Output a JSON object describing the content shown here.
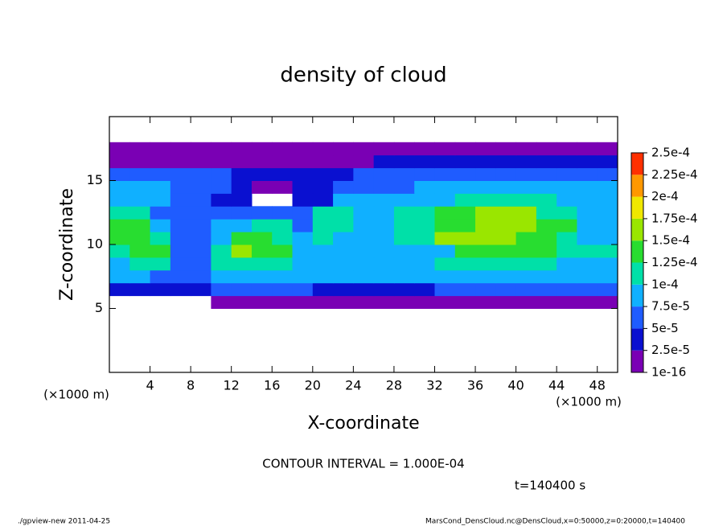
{
  "chart_data": {
    "type": "contour",
    "title": "density of cloud",
    "x_label": "X-coordinate",
    "y_label": "Z-coordinate",
    "x_unit": "(×1000 m)",
    "y_unit": "(×1000 m)",
    "contour_note": "CONTOUR INTERVAL = 1.000E-04",
    "time_note": "t=140400 s",
    "footer_left": "./gpview-new   2011-04-25",
    "footer_right": "MarsCond_DensCloud.nc@DensCloud,x=0:50000,z=0:20000,t=140400",
    "xlim": [
      0,
      50
    ],
    "ylim": [
      0,
      20
    ],
    "xticks": [
      4,
      8,
      12,
      16,
      20,
      24,
      28,
      32,
      36,
      40,
      44,
      48
    ],
    "yticks": [
      5,
      10,
      15
    ],
    "levels": [
      1e-16,
      {
        "value": 2.5e-05,
        "label": "2.5e-5"
      },
      {
        "value": 5e-05,
        "label": "5e-5"
      },
      {
        "value": 7.5e-05,
        "label": "7.5e-5"
      },
      {
        "value": 0.0001,
        "label": "1e-4"
      },
      {
        "value": 0.000125,
        "label": "1.25e-4"
      },
      {
        "value": 0.00015,
        "label": "1.5e-4"
      },
      {
        "value": 0.000175,
        "label": "1.75e-4"
      },
      {
        "value": 0.0002,
        "label": "2e-4"
      },
      {
        "value": 0.000225,
        "label": "2.25e-4"
      },
      {
        "value": 0.00025,
        "label": "2.5e-4"
      }
    ],
    "colors": [
      "#7a00b4",
      "#0a10d0",
      "#1f5cff",
      "#10b0ff",
      "#00e0a8",
      "#28dd30",
      "#9ae600",
      "#f0e800",
      "#ff9800",
      "#ff3000"
    ],
    "x": [
      1,
      3,
      5,
      7,
      9,
      11,
      13,
      15,
      17,
      19,
      21,
      23,
      25,
      27,
      29,
      31,
      33,
      35,
      37,
      39,
      41,
      43,
      45,
      47,
      49
    ],
    "y": [
      5.5,
      6.5,
      7.5,
      8.5,
      9.5,
      10.5,
      11.5,
      12.5,
      13.5,
      14.5,
      15.5,
      16.5,
      17.5
    ],
    "z": [
      [
        null,
        null,
        null,
        null,
        null,
        1e-05,
        1e-05,
        1e-05,
        1e-05,
        1e-05,
        1e-05,
        1e-05,
        1e-05,
        1e-05,
        1e-05,
        1e-05,
        1e-05,
        1e-05,
        1e-05,
        1e-05,
        1e-05,
        1e-05,
        1e-05,
        1e-05,
        1e-05
      ],
      [
        4e-05,
        4e-05,
        4e-05,
        4e-05,
        4e-05,
        6e-05,
        6e-05,
        6e-05,
        6e-05,
        6e-05,
        4e-05,
        4e-05,
        4e-05,
        4e-05,
        4e-05,
        4e-05,
        6e-05,
        6e-05,
        6e-05,
        6e-05,
        6e-05,
        6e-05,
        6e-05,
        6e-05,
        6e-05
      ],
      [
        9e-05,
        9e-05,
        6e-05,
        6e-05,
        6e-05,
        8e-05,
        8e-05,
        8e-05,
        8e-05,
        8e-05,
        8e-05,
        8e-05,
        8e-05,
        8e-05,
        8e-05,
        8e-05,
        8e-05,
        8e-05,
        8e-05,
        8e-05,
        8e-05,
        8e-05,
        8e-05,
        8e-05,
        8e-05
      ],
      [
        9e-05,
        0.00011,
        0.00011,
        7e-05,
        7e-05,
        0.00011,
        0.00011,
        0.00011,
        0.00011,
        8e-05,
        9e-05,
        9e-05,
        9e-05,
        9e-05,
        8e-05,
        8e-05,
        0.00011,
        0.00011,
        0.00011,
        0.00011,
        0.00011,
        0.00011,
        9e-05,
        9e-05,
        9e-05
      ],
      [
        0.00012,
        0.00013,
        0.00013,
        6e-05,
        6e-05,
        0.00011,
        0.00016,
        0.00013,
        0.00013,
        8e-05,
        9e-05,
        9e-05,
        8e-05,
        8e-05,
        8e-05,
        9e-05,
        9e-05,
        0.00013,
        0.00013,
        0.00013,
        0.00013,
        0.00013,
        0.00011,
        0.00011,
        0.00011
      ],
      [
        0.00014,
        0.00014,
        0.00011,
        6e-05,
        6e-05,
        9e-05,
        0.00013,
        0.00013,
        0.00011,
        8e-05,
        0.00011,
        8e-05,
        8e-05,
        8e-05,
        0.00011,
        0.00011,
        0.00015,
        0.00015,
        0.00015,
        0.00015,
        0.00014,
        0.00014,
        0.00011,
        9e-05,
        9e-05
      ],
      [
        0.00013,
        0.00013,
        9e-05,
        6e-05,
        6e-05,
        8e-05,
        9e-05,
        0.00011,
        0.00011,
        6e-05,
        0.00011,
        0.00011,
        9e-05,
        9e-05,
        0.00011,
        0.00011,
        0.00014,
        0.00014,
        0.00016,
        0.00016,
        0.00016,
        0.00013,
        0.00013,
        9e-05,
        9e-05
      ],
      [
        0.00011,
        0.00011,
        6e-05,
        6e-05,
        6e-05,
        6e-05,
        7e-05,
        7e-05,
        7e-05,
        6e-05,
        0.00011,
        0.00011,
        9e-05,
        9e-05,
        0.0001,
        0.0001,
        0.00013,
        0.00013,
        0.00015,
        0.00015,
        0.00015,
        0.00011,
        0.00011,
        9e-05,
        9e-05
      ],
      [
        8e-05,
        8e-05,
        8e-05,
        6e-05,
        6e-05,
        4e-05,
        4e-05,
        null,
        null,
        4e-05,
        4e-05,
        8e-05,
        8e-05,
        8e-05,
        9e-05,
        9e-05,
        9e-05,
        0.00011,
        0.00011,
        0.00011,
        0.00011,
        0.00011,
        8e-05,
        8e-05,
        8e-05
      ],
      [
        8e-05,
        8e-05,
        8e-05,
        6e-05,
        6e-05,
        6e-05,
        4e-05,
        2e-05,
        2e-05,
        4e-05,
        4e-05,
        7e-05,
        7e-05,
        7e-05,
        7e-05,
        8e-05,
        8e-05,
        8e-05,
        8e-05,
        8e-05,
        8e-05,
        8e-05,
        8e-05,
        8e-05,
        8e-05
      ],
      [
        6e-05,
        6e-05,
        6e-05,
        6e-05,
        6e-05,
        6e-05,
        4e-05,
        4e-05,
        4e-05,
        4e-05,
        4e-05,
        4e-05,
        6e-05,
        6e-05,
        6e-05,
        6e-05,
        6e-05,
        6e-05,
        6e-05,
        6e-05,
        6e-05,
        6e-05,
        6e-05,
        6e-05,
        6e-05
      ],
      [
        2e-05,
        2e-05,
        2e-05,
        2e-05,
        2e-05,
        2e-05,
        2e-05,
        2e-05,
        2e-05,
        2e-05,
        2e-05,
        2e-05,
        2e-05,
        4e-05,
        4e-05,
        4e-05,
        4e-05,
        4e-05,
        4e-05,
        4e-05,
        4e-05,
        4e-05,
        4e-05,
        4e-05,
        4e-05
      ],
      [
        1e-05,
        1e-05,
        1e-05,
        1e-05,
        1e-05,
        1e-05,
        1e-05,
        1e-05,
        1e-05,
        1e-05,
        1e-05,
        1e-05,
        1e-05,
        1e-05,
        1e-05,
        1e-05,
        1e-05,
        1e-05,
        1e-05,
        1e-05,
        1e-05,
        1e-05,
        1e-05,
        1e-05,
        1e-05
      ]
    ]
  }
}
